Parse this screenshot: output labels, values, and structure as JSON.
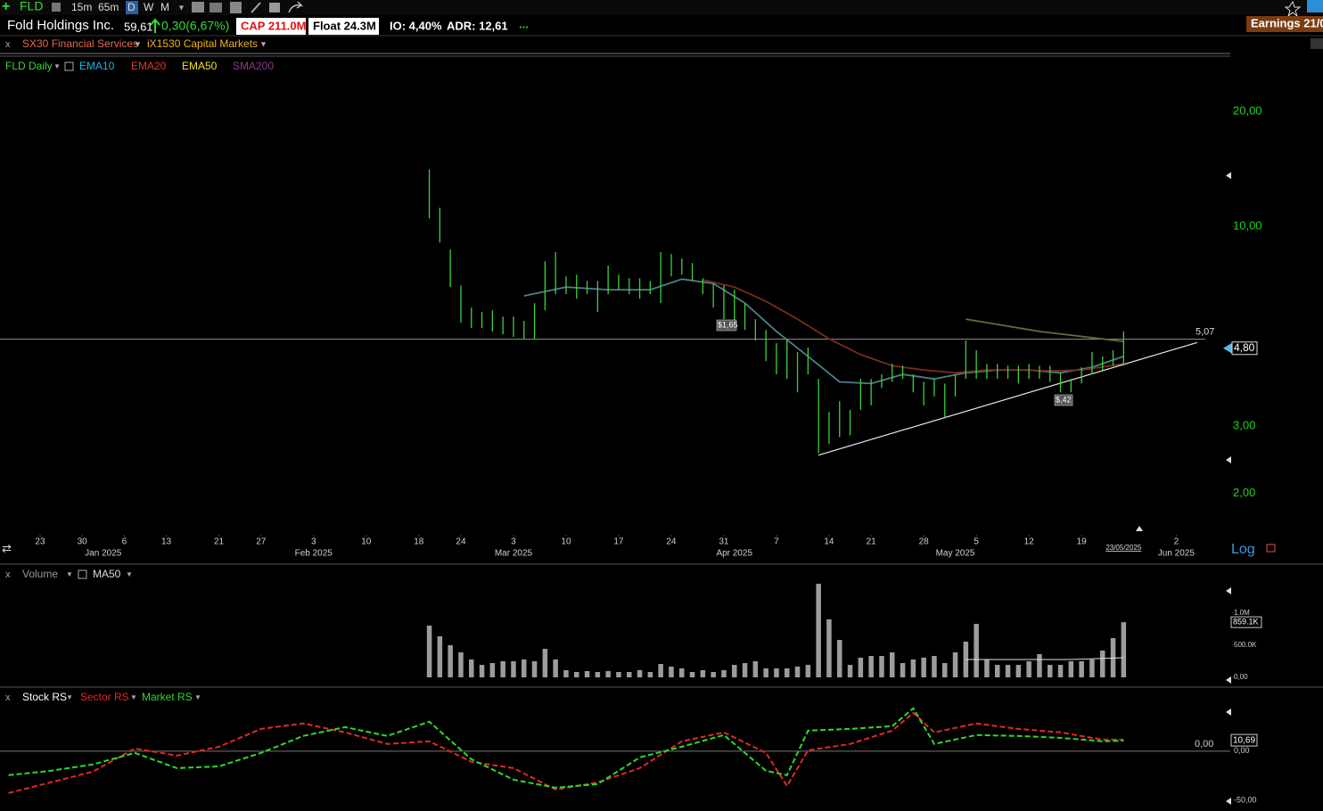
{
  "toolbar": {
    "symbol": "FLD",
    "timeframes": [
      "15m",
      "65m",
      "D",
      "W",
      "M"
    ]
  },
  "header": {
    "company": "Fold Holdings Inc.",
    "price": "59,61",
    "change": "0,30(6,67%)",
    "cap": "CAP 211.0M",
    "float": "Float 24.3M",
    "io": "IO: 4,40%",
    "adr": "ADR: 12,61",
    "more": "...",
    "earnings": "Earnings 21/0",
    "close": "x",
    "sector": "SX30 Financial Services",
    "industry": "iX1530 Capital Markets"
  },
  "chart_data": [
    {
      "type": "hilo",
      "title": "FLD Daily",
      "color": "#3ad33a",
      "log_scale": true,
      "x": [
        37,
        38,
        39,
        40,
        41,
        42,
        43,
        44,
        45,
        46,
        47,
        48,
        49,
        50,
        51,
        52,
        53,
        54,
        55,
        56,
        57,
        58,
        59,
        60,
        61,
        62,
        63,
        64,
        65,
        66,
        67,
        68,
        69,
        70,
        71,
        72,
        73,
        74,
        75,
        76,
        77,
        78,
        79,
        80,
        81,
        82,
        83,
        84,
        85,
        86,
        87,
        88,
        89,
        90,
        91,
        92,
        93,
        94,
        95,
        96,
        97,
        98,
        99,
        100,
        101,
        102,
        103
      ],
      "high": [
        14.1,
        11.2,
        8.7,
        7.01,
        6.13,
        5.97,
        6.03,
        5.81,
        5.81,
        5.66,
        6.3,
        8.11,
        8.56,
        7.4,
        7.48,
        7.2,
        7.2,
        7.9,
        7.48,
        7.32,
        7.32,
        7.2,
        8.56,
        8.47,
        8.24,
        8.02,
        7.32,
        7.09,
        7.01,
        6.83,
        6.3,
        5.72,
        5.36,
        4.95,
        5.08,
        4.69,
        4.82,
        3.99,
        3.27,
        3.49,
        3.31,
        3.99,
        3.99,
        4.1,
        4.37,
        4.32,
        4.1,
        3.92,
        3.99,
        3.88,
        4.1,
        5.03,
        4.74,
        4.37,
        4.37,
        4.32,
        4.32,
        4.37,
        4.32,
        4.32,
        4.14,
        3.99,
        4.28,
        4.69,
        4.57,
        4.74,
        5.31
      ],
      "low": [
        10.5,
        9.08,
        6.94,
        5.6,
        5.42,
        5.42,
        5.31,
        5.22,
        5.14,
        5.08,
        5.08,
        6.03,
        6.65,
        6.65,
        6.47,
        6.65,
        5.97,
        6.65,
        6.83,
        6.65,
        6.47,
        6.65,
        6.3,
        7.4,
        7.48,
        7.2,
        6.65,
        6.13,
        5.72,
        5.66,
        5.36,
        5.03,
        4.44,
        4.1,
        3.99,
        3.68,
        4.1,
        2.55,
        2.7,
        2.81,
        2.84,
        3.31,
        3.4,
        3.78,
        3.92,
        3.99,
        3.68,
        3.4,
        3.59,
        3.16,
        3.59,
        3.99,
        3.99,
        3.99,
        3.99,
        3.99,
        3.88,
        3.99,
        3.99,
        3.92,
        3.68,
        3.68,
        3.88,
        4.1,
        4.21,
        4.32,
        4.32
      ],
      "overlays": [
        {
          "name": "EMA10",
          "color": "#1fb6e8",
          "line_color": "#4d7f86",
          "x": [
            46,
            50,
            54,
            58,
            61,
            64,
            67,
            70,
            73,
            76,
            79,
            82,
            85,
            88,
            91,
            94,
            97,
            100,
            103
          ],
          "values": [
            6.58,
            6.94,
            6.83,
            6.83,
            7.28,
            7.09,
            6.3,
            5.31,
            4.57,
            3.92,
            3.88,
            4.1,
            3.99,
            4.14,
            4.21,
            4.21,
            4.14,
            4.28,
            4.57
          ]
        },
        {
          "name": "EMA20",
          "color": "#e8322a",
          "line_color": "#7a2a1c",
          "x": [
            63,
            66,
            69,
            72,
            75,
            78,
            81,
            84,
            87,
            90,
            93,
            96,
            99,
            103
          ],
          "values": [
            7.25,
            6.94,
            6.37,
            5.72,
            5.08,
            4.62,
            4.32,
            4.21,
            4.14,
            4.21,
            4.21,
            4.19,
            4.21,
            4.37
          ]
        },
        {
          "name": "EMA50",
          "color": "#f0e020",
          "line_color": "#6b6a3a",
          "x": [
            88,
            95,
            103
          ],
          "values": [
            5.72,
            5.31,
            5.0
          ]
        },
        {
          "name": "SMA200",
          "color": "#8a3a8a",
          "line_color": "#8a3a8a",
          "x": [],
          "values": []
        }
      ],
      "xlim": [
        -3.81,
        113.14
      ],
      "xticks": [
        {
          "value": 0,
          "label": "23"
        },
        {
          "value": 4,
          "label": "30"
        },
        {
          "value": 8,
          "label": "6"
        },
        {
          "value": 12,
          "label": "13"
        },
        {
          "value": 17,
          "label": "21"
        },
        {
          "value": 21,
          "label": "27"
        },
        {
          "value": 26,
          "label": "3"
        },
        {
          "value": 31,
          "label": "10"
        },
        {
          "value": 36,
          "label": "18"
        },
        {
          "value": 40,
          "label": "24"
        },
        {
          "value": 45,
          "label": "3"
        },
        {
          "value": 50,
          "label": "10"
        },
        {
          "value": 55,
          "label": "17"
        },
        {
          "value": 60,
          "label": "24"
        },
        {
          "value": 65,
          "label": "31"
        },
        {
          "value": 70,
          "label": "7"
        },
        {
          "value": 75,
          "label": "14"
        },
        {
          "value": 79,
          "label": "21"
        },
        {
          "value": 84,
          "label": "28"
        },
        {
          "value": 89,
          "label": "5"
        },
        {
          "value": 94,
          "label": "12"
        },
        {
          "value": 99,
          "label": "19"
        },
        {
          "value": 108,
          "label": "2"
        }
      ],
      "month_labels": [
        {
          "value": 6,
          "label": "Jan 2025"
        },
        {
          "value": 26,
          "label": "Feb 2025"
        },
        {
          "value": 45,
          "label": "Mar 2025"
        },
        {
          "value": 66,
          "label": "Apr 2025"
        },
        {
          "value": 87,
          "label": "May 2025"
        },
        {
          "value": 108,
          "label": "Jun 2025"
        }
      ],
      "date_marker": {
        "value": 103,
        "label": "23/05/2025"
      },
      "ylim": [
        1.56,
        24.8
      ],
      "yticks": [
        {
          "value": 2,
          "label": "2,00"
        },
        {
          "value": 3,
          "label": "3,00"
        },
        {
          "value": 10,
          "label": "10,00"
        },
        {
          "value": 20,
          "label": "20,00"
        }
      ],
      "price_line": {
        "value": 5.07,
        "label": "5,07"
      },
      "last_price": {
        "value": 4.8,
        "label": "4,80"
      },
      "trendline": {
        "x": [
          74,
          110
        ],
        "y": [
          2.52,
          4.97
        ]
      },
      "annotations": [
        "$1,65",
        "$,42"
      ],
      "scale_label": "Log"
    },
    {
      "type": "bar",
      "title": "Volume",
      "color": "#9c9c9c",
      "x": [
        37,
        38,
        39,
        40,
        41,
        42,
        43,
        44,
        45,
        46,
        47,
        48,
        49,
        50,
        51,
        52,
        53,
        54,
        55,
        56,
        57,
        58,
        59,
        60,
        61,
        62,
        63,
        64,
        65,
        66,
        67,
        68,
        69,
        70,
        71,
        72,
        73,
        74,
        75,
        76,
        77,
        78,
        79,
        80,
        81,
        82,
        83,
        84,
        85,
        86,
        87,
        88,
        89,
        90,
        91,
        92,
        93,
        94,
        95,
        96,
        97,
        98,
        99,
        100,
        101,
        102,
        103
      ],
      "values": [
        806000,
        639000,
        500000,
        389000,
        278000,
        194000,
        222000,
        250000,
        250000,
        278000,
        250000,
        444000,
        278000,
        111000,
        83000,
        97000,
        83000,
        97000,
        83000,
        83000,
        111000,
        83000,
        208000,
        167000,
        139000,
        83000,
        111000,
        83000,
        111000,
        194000,
        222000,
        250000,
        139000,
        139000,
        139000,
        167000,
        194000,
        1458000,
        903000,
        583000,
        194000,
        306000,
        333000,
        333000,
        389000,
        222000,
        278000,
        306000,
        333000,
        222000,
        389000,
        556000,
        833000,
        278000,
        194000,
        194000,
        194000,
        250000,
        361000,
        194000,
        194000,
        250000,
        250000,
        278000,
        417000,
        611000,
        859100
      ],
      "ma": {
        "name": "MA50",
        "color": "#e0e0e0",
        "x": [
          88,
          93,
          98,
          103
        ],
        "values": [
          278000,
          278000,
          278000,
          306000
        ]
      },
      "ylim": [
        0,
        1500000
      ],
      "yticks": [
        {
          "value": 0,
          "label": "0,00"
        },
        {
          "value": 500000,
          "label": "500.0K"
        },
        {
          "value": 1000000,
          "label": "1.0M"
        }
      ],
      "last_value": {
        "value": 859100,
        "label": "859.1K"
      }
    },
    {
      "type": "line",
      "dashed": true,
      "series": [
        {
          "name": "Stock RS",
          "color": "#ffffff"
        },
        {
          "name": "Sector RS",
          "color": "#e02828",
          "x": [
            -3,
            1,
            5,
            9,
            13,
            17,
            21,
            25,
            29,
            33,
            37,
            41,
            45,
            49,
            53,
            57,
            61,
            65,
            69,
            71,
            73,
            77,
            81,
            83,
            85,
            89,
            93,
            97,
            101,
            103
          ],
          "values": [
            -42.7,
            -31.8,
            -20.9,
            2.7,
            -4.5,
            4.5,
            22.7,
            28.2,
            19.1,
            7.3,
            10,
            -10.9,
            -17.3,
            -39.1,
            -31.8,
            -17.3,
            10,
            19.1,
            -1.8,
            -35.5,
            0.9,
            7.3,
            20.9,
            39.1,
            19.1,
            28.2,
            22.7,
            19.1,
            11.8,
            11.8
          ]
        },
        {
          "name": "Market RS",
          "color": "#2ed82e",
          "x": [
            -3,
            1,
            5,
            9,
            13,
            17,
            21,
            25,
            29,
            33,
            37,
            41,
            45,
            49,
            53,
            57,
            61,
            65,
            69,
            71,
            73,
            77,
            81,
            83,
            85,
            89,
            93,
            97,
            101,
            103
          ],
          "values": [
            -24.5,
            -20,
            -13.6,
            -1.8,
            -17.3,
            -15.5,
            -1.8,
            15.5,
            24.5,
            15.5,
            30,
            -8.2,
            -29.1,
            -37.3,
            -33.6,
            -6.4,
            4.5,
            16.4,
            -20,
            -24.5,
            20.9,
            22.7,
            25.5,
            43.6,
            7.3,
            16.4,
            15.5,
            13.6,
            10,
            10.69
          ]
        }
      ],
      "ylim": [
        -61,
        48
      ],
      "yticks": [
        {
          "value": -50,
          "label": "-50,00"
        },
        {
          "value": 0,
          "label": "0,00"
        }
      ],
      "last_value": {
        "value": 10.69,
        "label": "10,69"
      }
    }
  ]
}
